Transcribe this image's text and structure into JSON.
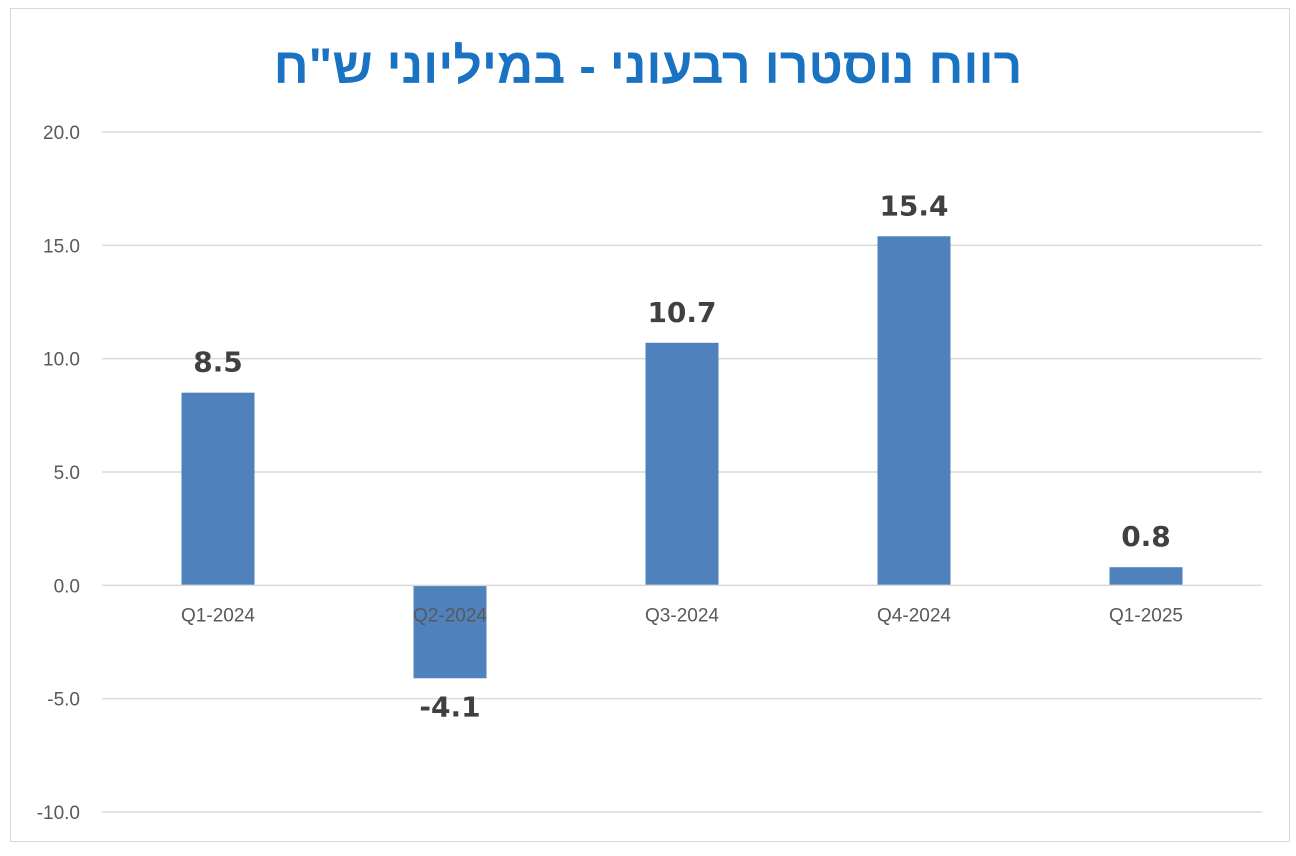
{
  "chart_data": {
    "type": "bar",
    "title": "רווח נוסטרו רבעוני -  במיליוני ש\"ח",
    "categories": [
      "Q1-2024",
      "Q2-2024",
      "Q3-2024",
      "Q4-2024",
      "Q1-2025"
    ],
    "values": [
      8.5,
      -4.1,
      10.7,
      15.4,
      0.8
    ],
    "data_labels": [
      "8.5",
      "-4.1",
      "10.7",
      "15.4",
      "0.8"
    ],
    "ylim": [
      -10,
      20
    ],
    "y_ticks": [
      "20.0",
      "15.0",
      "10.0",
      "5.0",
      "0.0",
      "-5.0",
      "-10.0"
    ],
    "y_tick_values": [
      20,
      15,
      10,
      5,
      0,
      -5,
      -10
    ],
    "grid": true,
    "legend": "none",
    "xlabel": "",
    "ylabel": "",
    "colors": {
      "bar": "#4f81bd",
      "title": "#1a73c2",
      "grid": "#d9d9d9",
      "axis_text": "#595959",
      "data_label": "#404040"
    }
  }
}
